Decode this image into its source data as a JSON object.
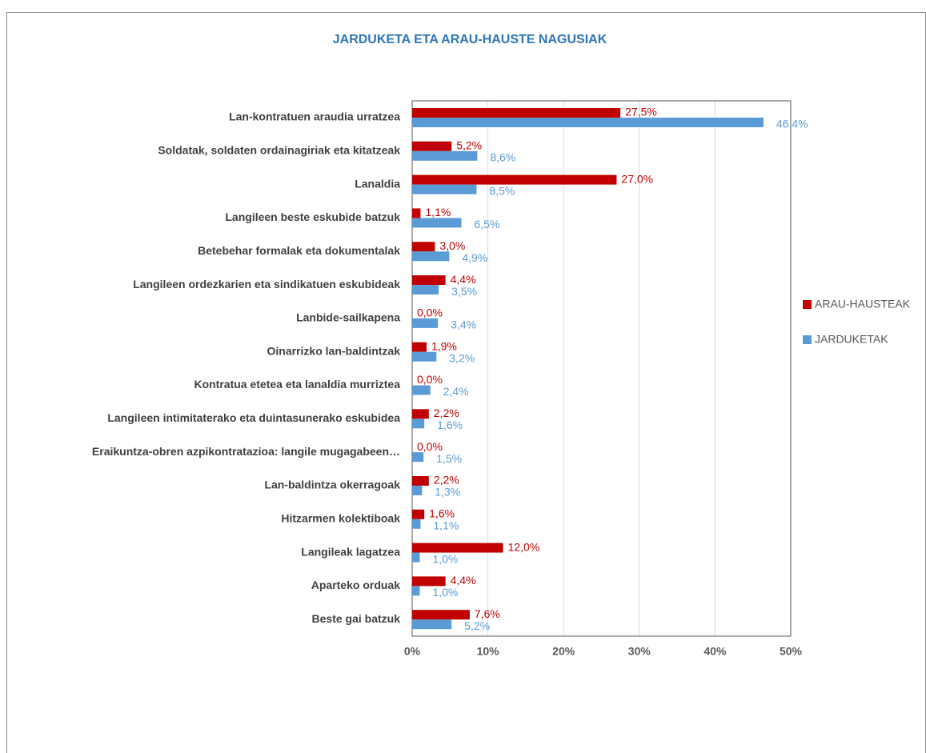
{
  "chart_data": {
    "type": "hbar",
    "title": "JARDUKETA ETA ARAU-HAUSTE NAGUSIAK",
    "categories": [
      "Lan-kontratuen araudia urratzea",
      "Soldatak, soldaten ordainagiriak eta kitatzeak",
      "Lanaldia",
      "Langileen beste eskubide batzuk",
      "Betebehar formalak eta dokumentalak",
      "Langileen ordezkarien eta sindikatuen eskubideak",
      "Lanbide-sailkapena",
      "Oinarrizko lan-baldintzak",
      "Kontratua etetea eta lanaldia murriztea",
      "Langileen intimitaterako eta duintasunerako eskubidea",
      "Eraikuntza-obren azpikontratazioa: langile mugagabeen…",
      "Lan-baldintza okerragoak",
      "Hitzarmen kolektiboak",
      "Langileak lagatzea",
      "Aparteko orduak",
      "Beste gai batzuk"
    ],
    "series": [
      {
        "name": "ARAU-HAUSTEAK",
        "color": "#c00000",
        "values": [
          27.5,
          5.2,
          27.0,
          1.1,
          3.0,
          4.4,
          0.0,
          1.9,
          0.0,
          2.2,
          0.0,
          2.2,
          1.6,
          12.0,
          4.4,
          7.6
        ],
        "value_labels": [
          "27,5%",
          "5,2%",
          "27,0%",
          "1,1%",
          "3,0%",
          "4,4%",
          "0,0%",
          "1,9%",
          "0,0%",
          "2,2%",
          "0,0%",
          "2,2%",
          "1,6%",
          "12,0%",
          "4,4%",
          "7,6%"
        ]
      },
      {
        "name": "JARDUKETAK",
        "color": "#5b9bd5",
        "values": [
          46.4,
          8.6,
          8.5,
          6.5,
          4.9,
          3.5,
          3.4,
          3.2,
          2.4,
          1.6,
          1.5,
          1.3,
          1.1,
          1.0,
          1.0,
          5.2
        ],
        "value_labels": [
          "46,4%",
          "8,6%",
          "8,5%",
          "6,5%",
          "4,9%",
          "3,5%",
          "3,4%",
          "3,2%",
          "2,4%",
          "1,6%",
          "1,5%",
          "1,3%",
          "1,1%",
          "1,0%",
          "1,0%",
          "5,2%"
        ]
      }
    ],
    "xlim": [
      0,
      50
    ],
    "xticks": [
      {
        "value": 0,
        "label": "0%"
      },
      {
        "value": 10,
        "label": "10%"
      },
      {
        "value": 20,
        "label": "20%"
      },
      {
        "value": 30,
        "label": "30%"
      },
      {
        "value": 40,
        "label": "40%"
      },
      {
        "value": 50,
        "label": "50%"
      }
    ],
    "grid": true,
    "legend": "right"
  }
}
